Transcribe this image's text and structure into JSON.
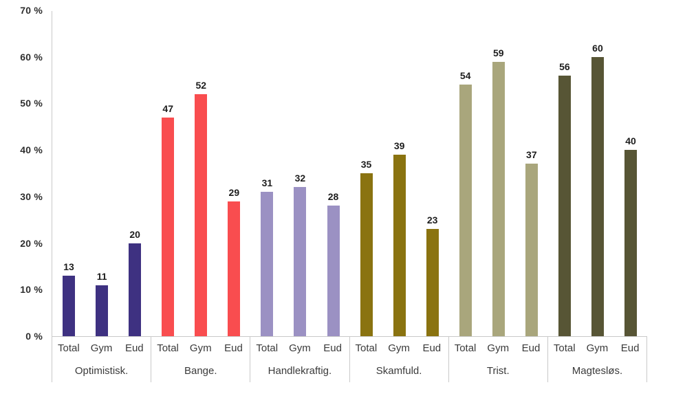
{
  "chart_data": {
    "type": "bar",
    "title": "",
    "xlabel": "",
    "ylabel": "",
    "ylim": [
      0,
      70
    ],
    "grid": false,
    "legend": false,
    "y_tick_values": [
      0,
      10,
      20,
      30,
      40,
      50,
      60,
      70
    ],
    "y_tick_labels": [
      "0 %",
      "10 %",
      "20 %",
      "30 %",
      "40 %",
      "50 %",
      "60 %",
      "70 %"
    ],
    "sub_categories": [
      "Total",
      "Gym",
      "Eud"
    ],
    "categories": [
      "Optimistisk.",
      "Bange.",
      "Handlekraftig.",
      "Skamfuld.",
      "Trist.",
      "Magtesløs."
    ],
    "series": [
      {
        "group": "Optimistisk.",
        "color": "#3e3181",
        "values": [
          13,
          11,
          20
        ]
      },
      {
        "group": "Bange.",
        "color": "#f94d4f",
        "values": [
          47,
          52,
          29
        ]
      },
      {
        "group": "Handlekraftig.",
        "color": "#9b91c3",
        "values": [
          31,
          32,
          28
        ]
      },
      {
        "group": "Skamfuld.",
        "color": "#8a7310",
        "values": [
          35,
          39,
          23
        ]
      },
      {
        "group": "Trist.",
        "color": "#a9a67c",
        "values": [
          54,
          59,
          37
        ]
      },
      {
        "group": "Magtesløs.",
        "color": "#575535",
        "values": [
          56,
          60,
          40
        ]
      }
    ]
  },
  "colors": {
    "axis_line": "#c9c9c9",
    "tick_text": "#2e2e2e",
    "value_text": "#1d1d1d",
    "category_text": "#3a3a3a",
    "background": "#ffffff"
  }
}
